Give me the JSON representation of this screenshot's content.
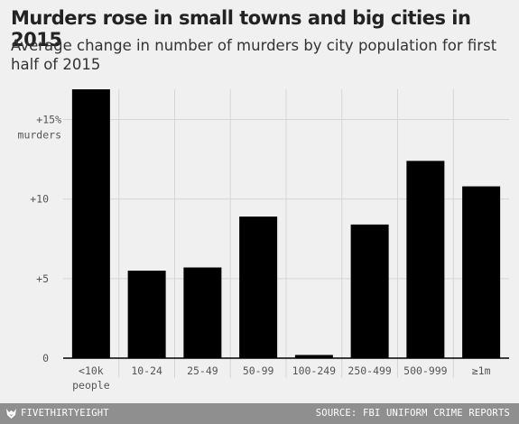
{
  "header": {
    "title": "Murders rose in small towns and big cities in 2015",
    "subtitle": "Average change in number of murders by city population for first half of 2015"
  },
  "chart_data": {
    "type": "bar",
    "categories": [
      "<10k\npeople",
      "10-24",
      "25-49",
      "50-99",
      "100-249",
      "250-499",
      "500-999",
      "≥1m"
    ],
    "values": [
      16.9,
      5.5,
      5.7,
      8.9,
      0.2,
      8.4,
      12.4,
      10.8
    ],
    "ylim": [
      0,
      16.9
    ],
    "yticks": [
      {
        "value": 0,
        "label": "0"
      },
      {
        "value": 5,
        "label": "+5"
      },
      {
        "value": 10,
        "label": "+10"
      },
      {
        "value": 15,
        "label": "+15%\nmurders"
      }
    ],
    "bar_color": "#000000",
    "grid": true,
    "legend": "none"
  },
  "footer": {
    "brand": "FIVETHIRTYEIGHT",
    "source": "SOURCE: FBI UNIFORM CRIME REPORTS",
    "brand_icon": "fox-icon"
  },
  "colors": {
    "background": "#f0f0f0",
    "grid": "#d6d6d6",
    "baseline": "#000000",
    "footer": "#8f8f8f"
  }
}
